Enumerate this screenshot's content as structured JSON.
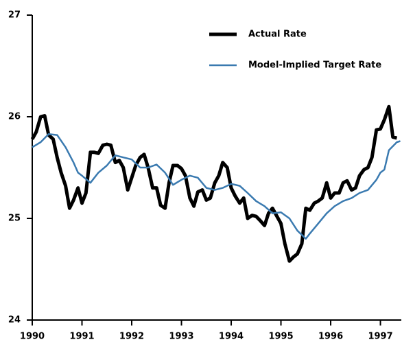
{
  "chart_data": {
    "type": "line",
    "series": [
      {
        "name": "Actual Rate",
        "color": "#000000",
        "width": 5,
        "x": [
          1990.0,
          1990.08,
          1990.17,
          1990.25,
          1990.33,
          1990.42,
          1990.5,
          1990.58,
          1990.67,
          1990.75,
          1990.83,
          1990.92,
          1991.0,
          1991.08,
          1991.17,
          1991.25,
          1991.33,
          1991.42,
          1991.5,
          1991.58,
          1991.67,
          1991.75,
          1991.83,
          1991.92,
          1992.0,
          1992.08,
          1992.17,
          1992.25,
          1992.33,
          1992.42,
          1992.5,
          1992.58,
          1992.67,
          1992.75,
          1992.83,
          1992.92,
          1993.0,
          1993.08,
          1993.17,
          1993.25,
          1993.33,
          1993.42,
          1993.5,
          1993.58,
          1993.67,
          1993.75,
          1993.83,
          1993.92,
          1994.0,
          1994.08,
          1994.17,
          1994.25,
          1994.33,
          1994.42,
          1994.5,
          1994.58,
          1994.67,
          1994.75,
          1994.83,
          1994.92,
          1995.0,
          1995.08,
          1995.17,
          1995.25,
          1995.33,
          1995.42,
          1995.5,
          1995.58,
          1995.67,
          1995.75,
          1995.83,
          1995.92,
          1996.0,
          1996.08,
          1996.17,
          1996.25,
          1996.33,
          1996.42,
          1996.5,
          1996.58,
          1996.67,
          1996.75,
          1996.83,
          1996.92,
          1997.0,
          1997.08,
          1997.17,
          1997.25,
          1997.33
        ],
        "values": [
          25.78,
          25.85,
          26.0,
          26.01,
          25.82,
          25.78,
          25.6,
          25.45,
          25.32,
          25.1,
          25.18,
          25.3,
          25.15,
          25.25,
          25.65,
          25.65,
          25.64,
          25.72,
          25.73,
          25.72,
          25.55,
          25.57,
          25.5,
          25.28,
          25.4,
          25.52,
          25.6,
          25.63,
          25.5,
          25.3,
          25.3,
          25.13,
          25.1,
          25.35,
          25.52,
          25.52,
          25.49,
          25.42,
          25.2,
          25.12,
          25.26,
          25.28,
          25.18,
          25.2,
          25.35,
          25.42,
          25.55,
          25.5,
          25.3,
          25.22,
          25.15,
          25.2,
          25.0,
          25.03,
          25.02,
          24.98,
          24.93,
          25.05,
          25.1,
          25.02,
          24.95,
          24.75,
          24.58,
          24.62,
          24.65,
          24.75,
          25.1,
          25.08,
          25.15,
          25.17,
          25.2,
          25.35,
          25.2,
          25.25,
          25.25,
          25.35,
          25.37,
          25.28,
          25.3,
          25.42,
          25.48,
          25.5,
          25.6,
          25.87,
          25.88,
          25.97,
          26.1,
          25.8,
          25.79
        ]
      },
      {
        "name": "Model-Implied Target Rate",
        "color": "#3a7ab0",
        "width": 2.5,
        "x": [
          1990.0,
          1990.17,
          1990.33,
          1990.5,
          1990.67,
          1990.83,
          1990.92,
          1991.0,
          1991.17,
          1991.33,
          1991.5,
          1991.67,
          1991.83,
          1992.0,
          1992.17,
          1992.33,
          1992.5,
          1992.67,
          1992.83,
          1993.0,
          1993.17,
          1993.33,
          1993.5,
          1993.67,
          1993.83,
          1994.0,
          1994.17,
          1994.33,
          1994.5,
          1994.67,
          1994.83,
          1995.0,
          1995.17,
          1995.33,
          1995.5,
          1995.58,
          1995.75,
          1995.92,
          1996.08,
          1996.25,
          1996.42,
          1996.58,
          1996.75,
          1996.92,
          1997.0,
          1997.08,
          1997.17,
          1997.33,
          1997.4
        ],
        "values": [
          25.7,
          25.75,
          25.83,
          25.82,
          25.7,
          25.55,
          25.45,
          25.42,
          25.35,
          25.45,
          25.52,
          25.62,
          25.6,
          25.58,
          25.5,
          25.5,
          25.53,
          25.45,
          25.33,
          25.38,
          25.42,
          25.4,
          25.3,
          25.28,
          25.3,
          25.34,
          25.32,
          25.25,
          25.17,
          25.12,
          25.05,
          25.06,
          25.0,
          24.88,
          24.8,
          24.85,
          24.95,
          25.05,
          25.12,
          25.17,
          25.2,
          25.25,
          25.28,
          25.38,
          25.45,
          25.48,
          25.67,
          25.75,
          25.76
        ]
      }
    ],
    "xlim": [
      1990,
      1997.42
    ],
    "xticks": [
      1990,
      1991,
      1992,
      1993,
      1994,
      1995,
      1996,
      1997
    ],
    "ylim": [
      24,
      27
    ],
    "yticks": [
      24,
      25,
      26,
      27
    ],
    "legend": "upper right"
  }
}
